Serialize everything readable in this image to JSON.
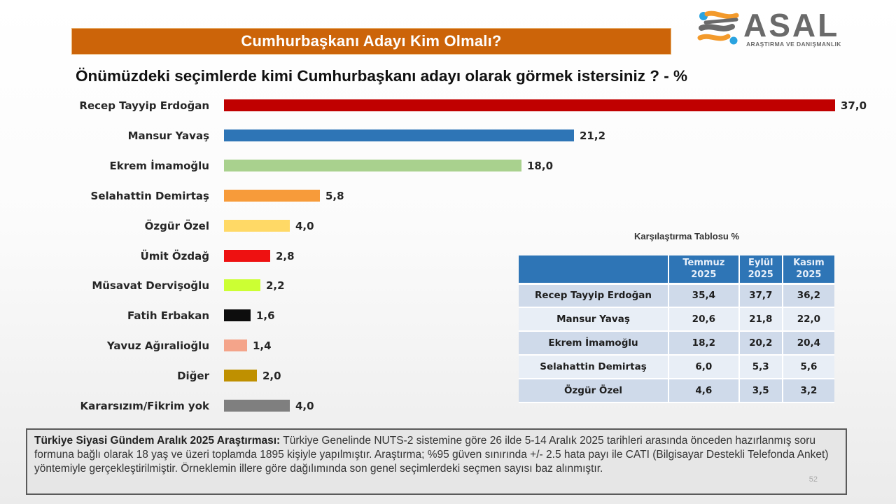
{
  "header": {
    "title": "Cumhurbaşkanı Adayı Kim Olmalı?",
    "logo": {
      "name": "ASAL",
      "tagline": "ARAŞTIRMA VE DANIŞMANLIK",
      "colors": {
        "blue": "#2aa3e0",
        "orange": "#f39a2b",
        "gray": "#6a6a6a"
      }
    },
    "banner_color": "#cc6409"
  },
  "question": "Önümüzdeki seçimlerde kimi Cumhurbaşkanı adayı olarak görmek istersiniz ? - %",
  "chart_data": [
    {
      "type": "bar",
      "orientation": "horizontal",
      "title": "Önümüzdeki seçimlerde kimi Cumhurbaşkanı adayı olarak görmek istersiniz ? - %",
      "xlabel": "",
      "ylabel": "",
      "xlim": [
        0,
        37
      ],
      "grid": false,
      "legend": null,
      "categories": [
        "Recep Tayyip Erdoğan",
        "Mansur Yavaş",
        "Ekrem İmamoğlu",
        "Selahattin Demirtaş",
        "Özgür Özel",
        "Ümit Özdağ",
        "Müsavat Dervişoğlu",
        "Fatih Erbakan",
        "Yavuz Ağıralioğlu",
        "Diğer",
        "Kararsızım/Fikrim yok"
      ],
      "values": [
        37.0,
        21.2,
        18.0,
        5.8,
        4.0,
        2.8,
        2.2,
        1.6,
        1.4,
        2.0,
        4.0
      ],
      "value_labels": [
        "37,0",
        "21,2",
        "18,0",
        "5,8",
        "4,0",
        "2,8",
        "2,2",
        "1,6",
        "1,4",
        "2,0",
        "4,0"
      ],
      "colors": [
        "#c00000",
        "#2e75b6",
        "#a9d18e",
        "#f79b3a",
        "#ffd966",
        "#ee1111",
        "#ccff33",
        "#0d0d0d",
        "#f4a48a",
        "#bf9000",
        "#7f7f7f"
      ]
    },
    {
      "type": "table",
      "title": "Karşılaştırma Tablosu %",
      "columns": [
        "",
        "Temmuz 2025",
        "Eylül 2025",
        "Kasım 2025"
      ],
      "rows": [
        {
          "name": "Recep Tayyip Erdoğan",
          "values": [
            "35,4",
            "37,7",
            "36,2"
          ]
        },
        {
          "name": "Mansur Yavaş",
          "values": [
            "20,6",
            "21,8",
            "22,0"
          ]
        },
        {
          "name": "Ekrem İmamoğlu",
          "values": [
            "18,2",
            "20,2",
            "20,4"
          ]
        },
        {
          "name": "Selahattin Demirtaş",
          "values": [
            "6,0",
            "5,3",
            "5,6"
          ]
        },
        {
          "name": "Özgür Özel",
          "values": [
            "4,6",
            "3,5",
            "3,2"
          ]
        }
      ],
      "header_color": "#2e75b6"
    }
  ],
  "table": {
    "title": "Karşılaştırma Tablosu %",
    "headers": [
      {
        "line1": "Temmuz",
        "line2": "2025"
      },
      {
        "line1": "Eylül",
        "line2": "2025"
      },
      {
        "line1": "Kasım",
        "line2": "2025"
      }
    ],
    "rows": [
      {
        "name": "Recep Tayyip Erdoğan",
        "v": [
          "35,4",
          "37,7",
          "36,2"
        ]
      },
      {
        "name": "Mansur Yavaş",
        "v": [
          "20,6",
          "21,8",
          "22,0"
        ]
      },
      {
        "name": "Ekrem İmamoğlu",
        "v": [
          "18,2",
          "20,2",
          "20,4"
        ]
      },
      {
        "name": "Selahattin Demirtaş",
        "v": [
          "6,0",
          "5,3",
          "5,6"
        ]
      },
      {
        "name": "Özgür Özel",
        "v": [
          "4,6",
          "3,5",
          "3,2"
        ]
      }
    ]
  },
  "footer": {
    "bold_lead": "Türkiye Siyasi Gündem Aralık 2025 Araştırması:",
    "text": " Türkiye Genelinde NUTS-2 sistemine göre 26 ilde 5-14 Aralık 2025 tarihleri arasında önceden hazırlanmış soru formuna bağlı olarak 18 yaş ve üzeri toplamda 1895 kişiyle yapılmıştır. Araştırma; %95 güven sınırında +/- 2.5 hata payı ile CATI (Bilgisayar Destekli Telefonda Anket) yöntemiyle gerçekleştirilmiştir. Örneklemin illere göre dağılımında son genel seçimlerdeki seçmen sayısı baz alınmıştır.",
    "page_number": "52"
  }
}
